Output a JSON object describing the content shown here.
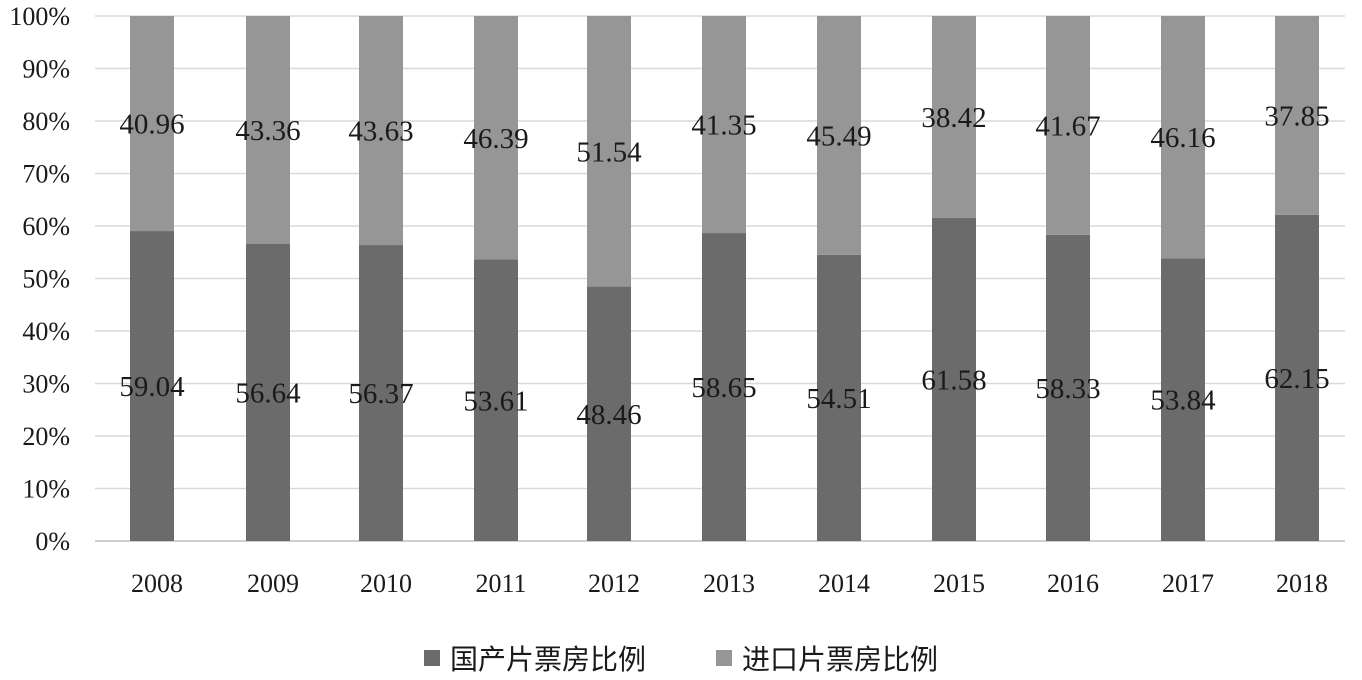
{
  "chart_data": {
    "type": "bar",
    "stacked": true,
    "categories": [
      "2008",
      "2009",
      "2010",
      "2011",
      "2012",
      "2013",
      "2014",
      "2015",
      "2016",
      "2017",
      "2018"
    ],
    "series": [
      {
        "name": "国产片票房比例",
        "values": [
          59.04,
          56.64,
          56.37,
          53.61,
          48.46,
          58.65,
          54.51,
          61.58,
          58.33,
          53.84,
          62.15
        ],
        "color": "#6b6b6b"
      },
      {
        "name": "进口片票房比例",
        "values": [
          40.96,
          43.36,
          43.63,
          46.39,
          51.54,
          41.35,
          45.49,
          38.42,
          41.67,
          46.16,
          37.85
        ],
        "color": "#969696"
      }
    ],
    "y_ticks": [
      "0%",
      "10%",
      "20%",
      "30%",
      "40%",
      "50%",
      "60%",
      "70%",
      "80%",
      "90%",
      "100%"
    ],
    "ylim": [
      0,
      100
    ],
    "grid": true,
    "legend_position": "bottom"
  }
}
